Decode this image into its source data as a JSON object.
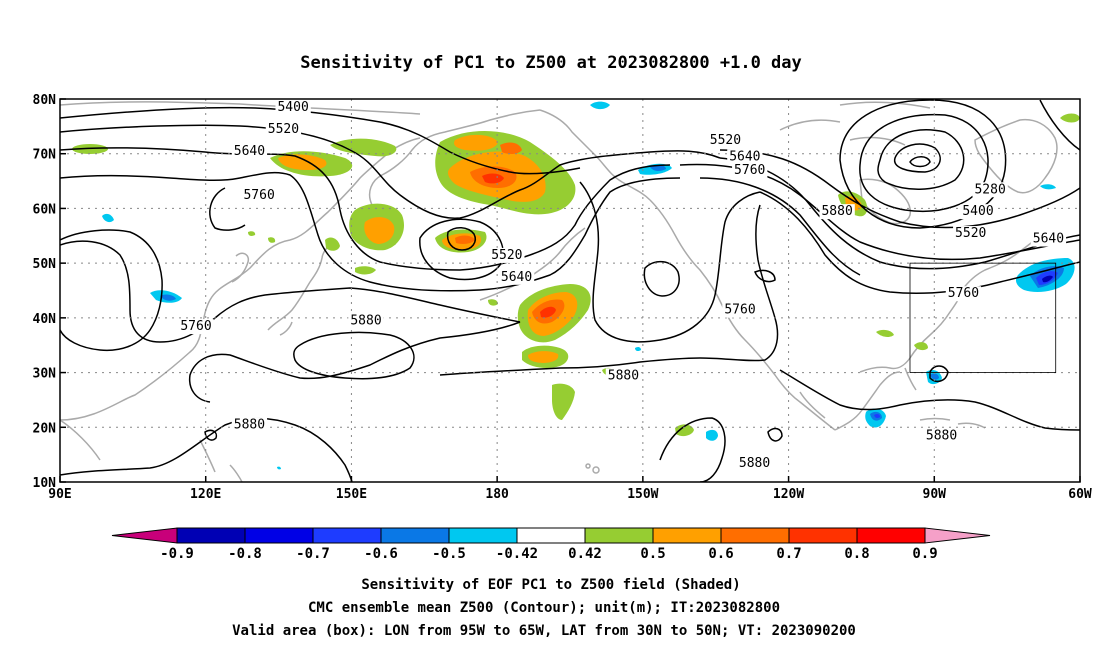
{
  "title": "Sensitivity of PC1 to Z500 at 2023082800 +1.0 day",
  "map": {
    "lon_range": [
      90,
      300
    ],
    "lat_range": [
      10,
      80
    ],
    "lon_ticks": [
      {
        "lon": 90,
        "label": "90E"
      },
      {
        "lon": 120,
        "label": "120E"
      },
      {
        "lon": 150,
        "label": "150E"
      },
      {
        "lon": 180,
        "label": "180"
      },
      {
        "lon": 210,
        "label": "150W"
      },
      {
        "lon": 240,
        "label": "120W"
      },
      {
        "lon": 270,
        "label": "90W"
      },
      {
        "lon": 300,
        "label": "60W"
      }
    ],
    "lat_ticks": [
      {
        "lat": 10,
        "label": "10N"
      },
      {
        "lat": 20,
        "label": "20N"
      },
      {
        "lat": 30,
        "label": "30N"
      },
      {
        "lat": 40,
        "label": "40N"
      },
      {
        "lat": 50,
        "label": "50N"
      },
      {
        "lat": 60,
        "label": "60N"
      },
      {
        "lat": 70,
        "label": "70N"
      },
      {
        "lat": 80,
        "label": "80N"
      }
    ],
    "grid": "dotted",
    "valid_box": {
      "lon_min": 265,
      "lon_max": 295,
      "lat_min": 30,
      "lat_max": 50
    },
    "contour_labels": [
      {
        "value": "5400",
        "lon": 138,
        "lat": 78.5
      },
      {
        "value": "5520",
        "lon": 136,
        "lat": 74.5
      },
      {
        "value": "5640",
        "lon": 129,
        "lat": 70.5
      },
      {
        "value": "5760",
        "lon": 131,
        "lat": 62.5
      },
      {
        "value": "5760",
        "lon": 118,
        "lat": 38.5
      },
      {
        "value": "5880",
        "lon": 153,
        "lat": 39.5
      },
      {
        "value": "5880",
        "lon": 129,
        "lat": 20.5
      },
      {
        "value": "5520",
        "lon": 182,
        "lat": 51.5
      },
      {
        "value": "5640",
        "lon": 184,
        "lat": 47.5
      },
      {
        "value": "5520",
        "lon": 227,
        "lat": 72.5
      },
      {
        "value": "5640",
        "lon": 231,
        "lat": 69.5
      },
      {
        "value": "5760",
        "lon": 232,
        "lat": 67
      },
      {
        "value": "5880",
        "lon": 250,
        "lat": 59.5
      },
      {
        "value": "5760",
        "lon": 230,
        "lat": 41.5
      },
      {
        "value": "5880",
        "lon": 206,
        "lat": 29.5
      },
      {
        "value": "5880",
        "lon": 233,
        "lat": 13.5
      },
      {
        "value": "5280",
        "lon": 281.5,
        "lat": 63.5
      },
      {
        "value": "5400",
        "lon": 279,
        "lat": 59.5
      },
      {
        "value": "5520",
        "lon": 277.5,
        "lat": 55.5
      },
      {
        "value": "5640",
        "lon": 293.5,
        "lat": 54.5
      },
      {
        "value": "5760",
        "lon": 276,
        "lat": 44.5
      },
      {
        "value": "5880",
        "lon": 271.5,
        "lat": 18.5
      }
    ]
  },
  "colorbar": {
    "tick_labels": [
      "-0.9",
      "-0.8",
      "-0.7",
      "-0.6",
      "-0.5",
      "-0.42",
      "0.42",
      "0.5",
      "0.6",
      "0.7",
      "0.8",
      "0.9"
    ],
    "colors": {
      "under": "#c8007a",
      "over": "#f5a0c8",
      "bins": [
        "#0000b4",
        "#0000e6",
        "#1e3cff",
        "#0a78e6",
        "#00c8f0",
        "#ffffff",
        "#96cd32",
        "#ffa000",
        "#ff6e00",
        "#ff3200",
        "#ff0000"
      ]
    }
  },
  "captions": [
    "Sensitivity of EOF PC1 to Z500 field (Shaded)",
    "CMC ensemble mean Z500 (Contour); unit(m); IT:2023082800",
    "Valid area (box): LON from 95W to 65W, LAT from 30N to 50N; VT: 2023090200"
  ]
}
